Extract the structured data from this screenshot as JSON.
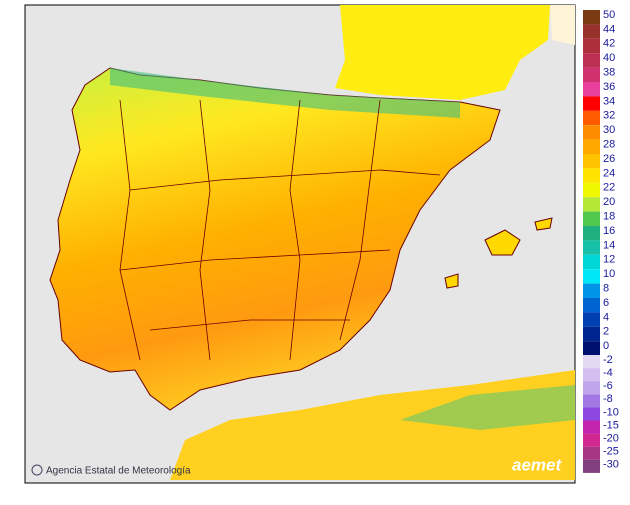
{
  "legend": {
    "items": [
      {
        "label": "50",
        "color": "#7b3b12"
      },
      {
        "label": "44",
        "color": "#98302c"
      },
      {
        "label": "42",
        "color": "#ac2f3e"
      },
      {
        "label": "40",
        "color": "#bd2f52"
      },
      {
        "label": "38",
        "color": "#d03270"
      },
      {
        "label": "36",
        "color": "#e8409c"
      },
      {
        "label": "34",
        "color": "#ff0000"
      },
      {
        "label": "32",
        "color": "#ff5a00"
      },
      {
        "label": "30",
        "color": "#ff8c00"
      },
      {
        "label": "28",
        "color": "#ffa800"
      },
      {
        "label": "26",
        "color": "#ffc400"
      },
      {
        "label": "24",
        "color": "#ffe400"
      },
      {
        "label": "22",
        "color": "#f0f800"
      },
      {
        "label": "20",
        "color": "#b4e838"
      },
      {
        "label": "18",
        "color": "#50c850"
      },
      {
        "label": "16",
        "color": "#20b080"
      },
      {
        "label": "14",
        "color": "#18c0a8"
      },
      {
        "label": "12",
        "color": "#00d8d8"
      },
      {
        "label": "10",
        "color": "#00e8f8"
      },
      {
        "label": "8",
        "color": "#0094e8"
      },
      {
        "label": "6",
        "color": "#0064d0"
      },
      {
        "label": "4",
        "color": "#0040b0"
      },
      {
        "label": "2",
        "color": "#002490"
      },
      {
        "label": "0",
        "color": "#001070"
      }
    ],
    "negative_items": [
      {
        "label": "-2",
        "color": "#e4d8f4"
      },
      {
        "label": "-4",
        "color": "#d4c0f0"
      },
      {
        "label": "-6",
        "color": "#c0a4ec"
      },
      {
        "label": "-8",
        "color": "#a478e4"
      },
      {
        "label": "-10",
        "color": "#8c48e0"
      },
      {
        "label": "-15",
        "color": "#c424b0"
      },
      {
        "label": "-20",
        "color": "#d02890"
      },
      {
        "label": "-25",
        "color": "#a83484"
      },
      {
        "label": "-30",
        "color": "#804080"
      }
    ]
  },
  "footer": {
    "credit": "Agencia Estatal de Meteorología",
    "logo": "aemet"
  }
}
